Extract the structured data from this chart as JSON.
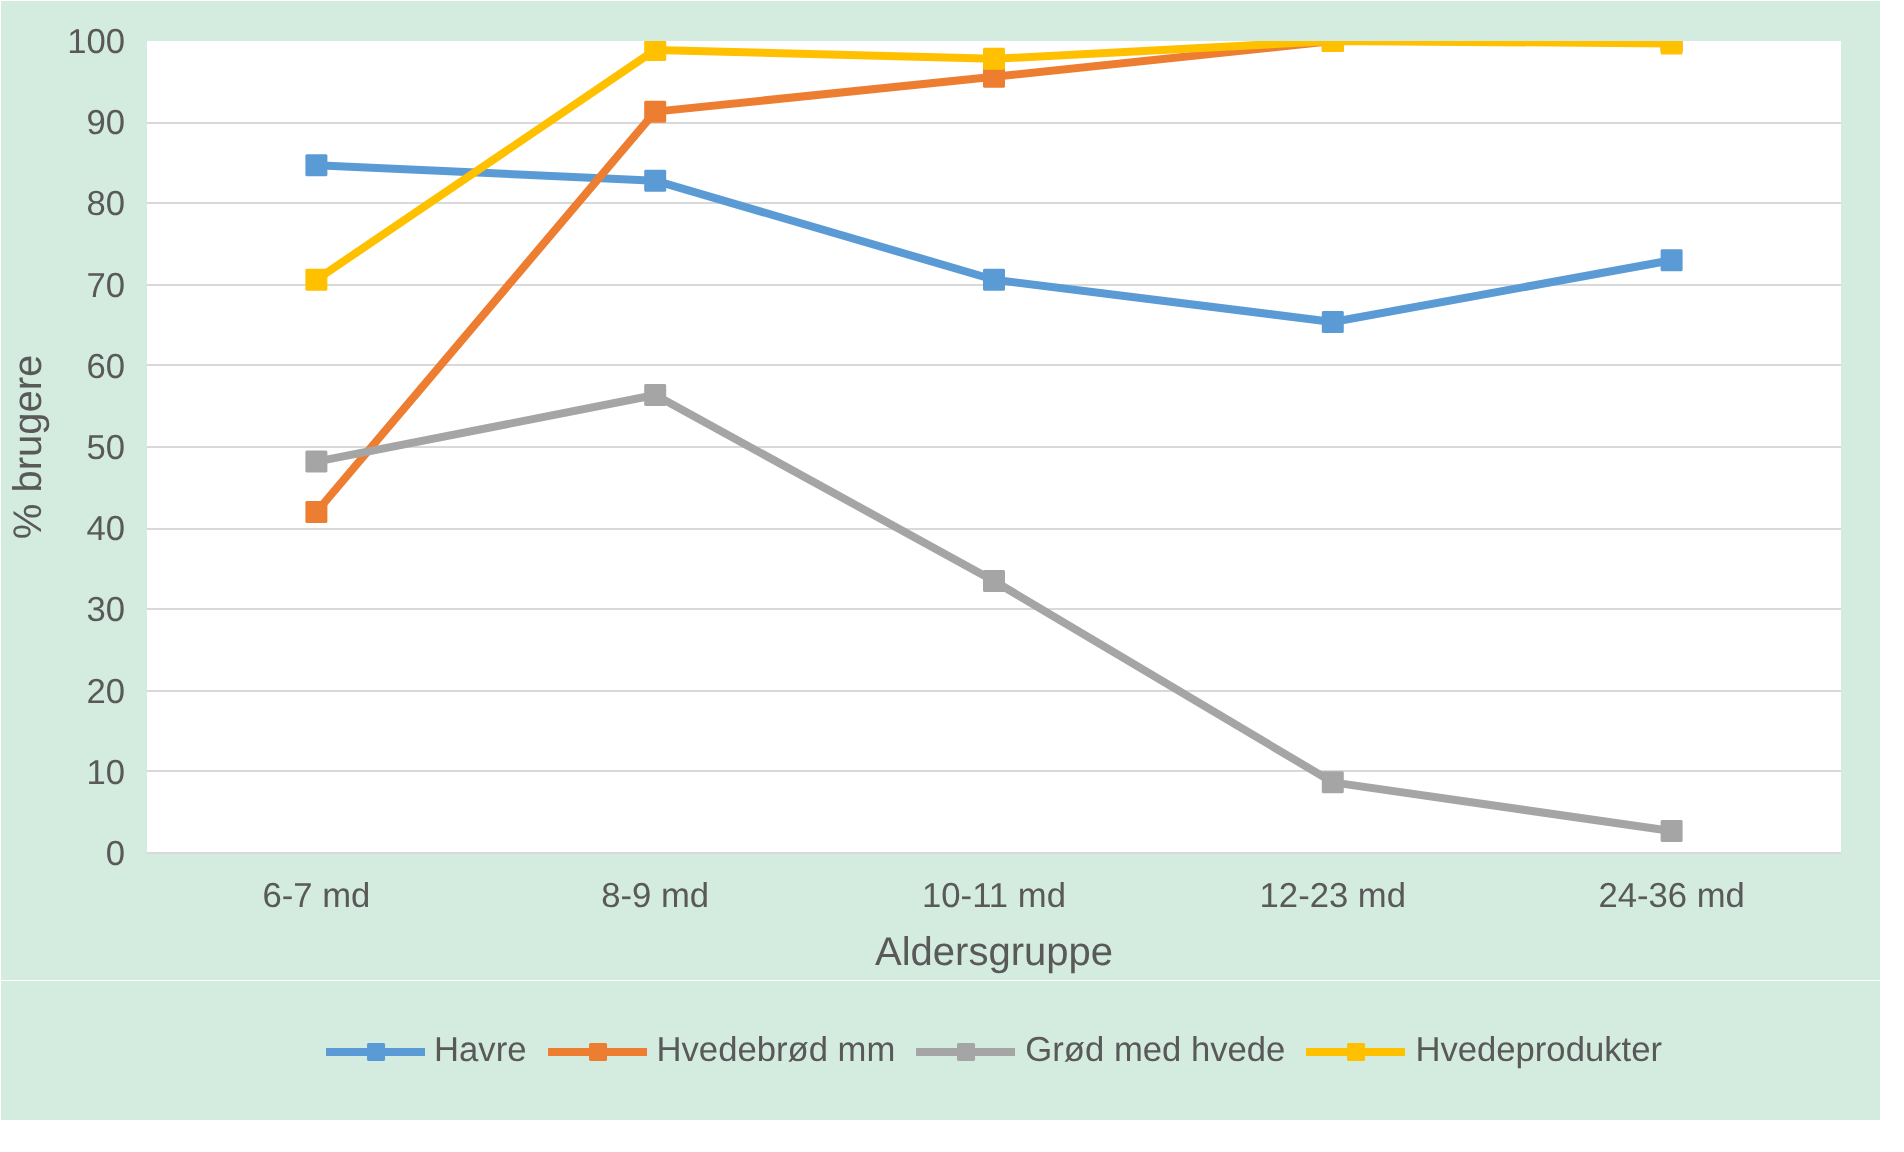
{
  "chart_data": {
    "type": "line",
    "xlabel": "Aldersgruppe",
    "ylabel": "% brugere",
    "categories": [
      "6-7 md",
      "8-9 md",
      "10-11 md",
      "12-23 md",
      "24-36 md"
    ],
    "series": [
      {
        "name": "Havre",
        "color": "#5b9bd5",
        "values": [
          84.7,
          82.8,
          70.6,
          65.4,
          73
        ]
      },
      {
        "name": "Hvedebrød mm",
        "color": "#ed7d31",
        "values": [
          42,
          91.3,
          95.6,
          100,
          100
        ]
      },
      {
        "name": "Grød med hvede",
        "color": "#a5a5a5",
        "values": [
          48.2,
          56.4,
          33.5,
          8.7,
          2.7
        ]
      },
      {
        "name": "Hvedeprodukter",
        "color": "#ffc000",
        "values": [
          70.6,
          98.9,
          97.8,
          100,
          99.7
        ]
      }
    ],
    "ylim": [
      0,
      100
    ],
    "yticks": [
      0,
      10,
      20,
      30,
      40,
      50,
      60,
      70,
      80,
      90,
      100
    ],
    "grid": "y",
    "legend": "bottom",
    "marker": "square",
    "line_style": "solid"
  }
}
